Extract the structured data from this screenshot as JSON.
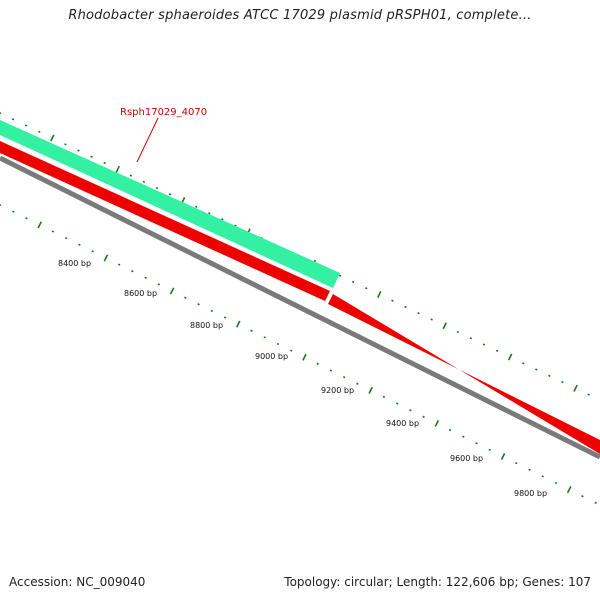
{
  "title": "Rhodobacter sphaeroides ATCC 17029 plasmid pRSPH01, complete...",
  "footer": {
    "accession": "Accession: NC_009040",
    "summary": "Topology: circular; Length: 122,606 bp; Genes: 107"
  },
  "colors": {
    "gene_forward": "#33f0a3",
    "gene_reverse": "#ee0000",
    "backbone": "#7a7a7a",
    "ticks": "#1a7a1a",
    "gene_label": "#cc0000"
  },
  "gene_label": "Rsph17029_4070",
  "tick_labels": [
    {
      "text": "8400 bp"
    },
    {
      "text": "8600 bp"
    },
    {
      "text": "8800 bp"
    },
    {
      "text": "9000 bp"
    },
    {
      "text": "9200 bp"
    },
    {
      "text": "9400 bp"
    },
    {
      "text": "9600 bp"
    },
    {
      "text": "9800 bp"
    }
  ]
}
